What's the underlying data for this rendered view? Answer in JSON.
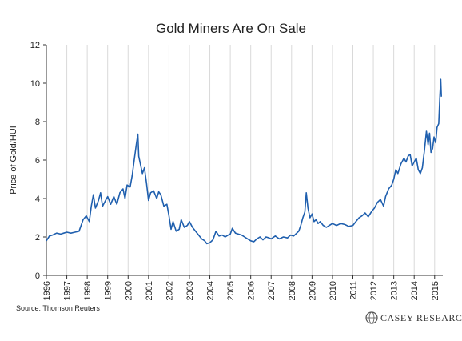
{
  "chart_data": {
    "type": "line",
    "title": "Gold Miners Are On Sale",
    "ylabel": "Price of Gold/HUI",
    "xlabel": "",
    "ylim": [
      0,
      12
    ],
    "xlim": [
      1996,
      2015.4
    ],
    "y_ticks": [
      0,
      2,
      4,
      6,
      8,
      10,
      12
    ],
    "x_ticks": [
      "1996",
      "1997",
      "1998",
      "1999",
      "2000",
      "2001",
      "2002",
      "2003",
      "2004",
      "2005",
      "2006",
      "2007",
      "2008",
      "2009",
      "2010",
      "2011",
      "2012",
      "2013",
      "2014",
      "2015"
    ],
    "grid": "vertical",
    "series": [
      {
        "color": "#1f5fae",
        "points": [
          [
            1996.0,
            1.8
          ],
          [
            1996.15,
            2.05
          ],
          [
            1996.3,
            2.1
          ],
          [
            1996.5,
            2.2
          ],
          [
            1996.7,
            2.15
          ],
          [
            1996.85,
            2.2
          ],
          [
            1997.0,
            2.25
          ],
          [
            1997.2,
            2.2
          ],
          [
            1997.4,
            2.25
          ],
          [
            1997.6,
            2.3
          ],
          [
            1997.8,
            2.9
          ],
          [
            1997.95,
            3.1
          ],
          [
            1998.1,
            2.8
          ],
          [
            1998.2,
            3.6
          ],
          [
            1998.3,
            4.2
          ],
          [
            1998.4,
            3.5
          ],
          [
            1998.55,
            3.9
          ],
          [
            1998.65,
            4.3
          ],
          [
            1998.75,
            3.6
          ],
          [
            1998.9,
            3.9
          ],
          [
            1999.0,
            4.1
          ],
          [
            1999.15,
            3.7
          ],
          [
            1999.3,
            4.1
          ],
          [
            1999.45,
            3.7
          ],
          [
            1999.6,
            4.3
          ],
          [
            1999.75,
            4.5
          ],
          [
            1999.85,
            4.0
          ],
          [
            1999.95,
            4.7
          ],
          [
            2000.1,
            4.6
          ],
          [
            2000.2,
            5.2
          ],
          [
            2000.3,
            6.0
          ],
          [
            2000.4,
            6.8
          ],
          [
            2000.48,
            7.35
          ],
          [
            2000.52,
            6.2
          ],
          [
            2000.6,
            5.8
          ],
          [
            2000.7,
            5.3
          ],
          [
            2000.8,
            5.6
          ],
          [
            2000.9,
            4.8
          ],
          [
            2001.0,
            3.9
          ],
          [
            2001.1,
            4.3
          ],
          [
            2001.25,
            4.4
          ],
          [
            2001.4,
            4.0
          ],
          [
            2001.5,
            4.35
          ],
          [
            2001.6,
            4.2
          ],
          [
            2001.75,
            3.6
          ],
          [
            2001.9,
            3.7
          ],
          [
            2002.0,
            3.1
          ],
          [
            2002.1,
            2.4
          ],
          [
            2002.2,
            2.8
          ],
          [
            2002.35,
            2.3
          ],
          [
            2002.5,
            2.4
          ],
          [
            2002.6,
            2.9
          ],
          [
            2002.75,
            2.5
          ],
          [
            2002.9,
            2.6
          ],
          [
            2003.0,
            2.8
          ],
          [
            2003.15,
            2.5
          ],
          [
            2003.3,
            2.3
          ],
          [
            2003.45,
            2.1
          ],
          [
            2003.6,
            1.9
          ],
          [
            2003.75,
            1.8
          ],
          [
            2003.85,
            1.65
          ],
          [
            2004.0,
            1.7
          ],
          [
            2004.15,
            1.85
          ],
          [
            2004.3,
            2.3
          ],
          [
            2004.45,
            2.05
          ],
          [
            2004.6,
            2.1
          ],
          [
            2004.75,
            2.0
          ],
          [
            2004.9,
            2.1
          ],
          [
            2005.0,
            2.15
          ],
          [
            2005.1,
            2.45
          ],
          [
            2005.25,
            2.2
          ],
          [
            2005.4,
            2.15
          ],
          [
            2005.55,
            2.1
          ],
          [
            2005.7,
            2.0
          ],
          [
            2005.85,
            1.9
          ],
          [
            2006.0,
            1.8
          ],
          [
            2006.15,
            1.75
          ],
          [
            2006.3,
            1.9
          ],
          [
            2006.45,
            2.0
          ],
          [
            2006.6,
            1.85
          ],
          [
            2006.75,
            2.0
          ],
          [
            2006.9,
            1.95
          ],
          [
            2007.0,
            1.9
          ],
          [
            2007.2,
            2.05
          ],
          [
            2007.4,
            1.9
          ],
          [
            2007.6,
            2.0
          ],
          [
            2007.8,
            1.95
          ],
          [
            2007.95,
            2.1
          ],
          [
            2008.1,
            2.05
          ],
          [
            2008.2,
            2.15
          ],
          [
            2008.35,
            2.3
          ],
          [
            2008.45,
            2.6
          ],
          [
            2008.55,
            3.0
          ],
          [
            2008.65,
            3.3
          ],
          [
            2008.72,
            4.3
          ],
          [
            2008.8,
            3.5
          ],
          [
            2008.9,
            3.0
          ],
          [
            2009.0,
            3.2
          ],
          [
            2009.1,
            2.8
          ],
          [
            2009.2,
            2.9
          ],
          [
            2009.3,
            2.7
          ],
          [
            2009.4,
            2.8
          ],
          [
            2009.55,
            2.6
          ],
          [
            2009.7,
            2.5
          ],
          [
            2009.85,
            2.6
          ],
          [
            2010.0,
            2.7
          ],
          [
            2010.2,
            2.6
          ],
          [
            2010.4,
            2.7
          ],
          [
            2010.6,
            2.65
          ],
          [
            2010.8,
            2.55
          ],
          [
            2011.0,
            2.6
          ],
          [
            2011.15,
            2.8
          ],
          [
            2011.3,
            3.0
          ],
          [
            2011.45,
            3.1
          ],
          [
            2011.6,
            3.25
          ],
          [
            2011.75,
            3.05
          ],
          [
            2011.9,
            3.3
          ],
          [
            2012.05,
            3.5
          ],
          [
            2012.2,
            3.8
          ],
          [
            2012.35,
            3.95
          ],
          [
            2012.5,
            3.6
          ],
          [
            2012.6,
            4.1
          ],
          [
            2012.75,
            4.5
          ],
          [
            2012.9,
            4.7
          ],
          [
            2013.0,
            5.0
          ],
          [
            2013.1,
            5.5
          ],
          [
            2013.2,
            5.3
          ],
          [
            2013.35,
            5.8
          ],
          [
            2013.5,
            6.1
          ],
          [
            2013.6,
            5.9
          ],
          [
            2013.7,
            6.2
          ],
          [
            2013.8,
            6.3
          ],
          [
            2013.9,
            5.7
          ],
          [
            2014.0,
            5.9
          ],
          [
            2014.1,
            6.1
          ],
          [
            2014.2,
            5.5
          ],
          [
            2014.3,
            5.3
          ],
          [
            2014.4,
            5.6
          ],
          [
            2014.5,
            6.5
          ],
          [
            2014.6,
            7.5
          ],
          [
            2014.68,
            6.8
          ],
          [
            2014.75,
            7.4
          ],
          [
            2014.82,
            6.4
          ],
          [
            2014.9,
            6.6
          ],
          [
            2014.97,
            7.2
          ],
          [
            2015.05,
            6.9
          ],
          [
            2015.12,
            7.7
          ],
          [
            2015.2,
            7.9
          ],
          [
            2015.26,
            9.4
          ],
          [
            2015.3,
            10.2
          ],
          [
            2015.33,
            9.3
          ]
        ]
      }
    ]
  },
  "footer": {
    "source": "Source: Thomson Reuters",
    "logo_text": "CASEY RESEARCH"
  },
  "colors": {
    "line": "#1f5fae",
    "grid": "#d9d9d9",
    "axis": "#333333"
  }
}
